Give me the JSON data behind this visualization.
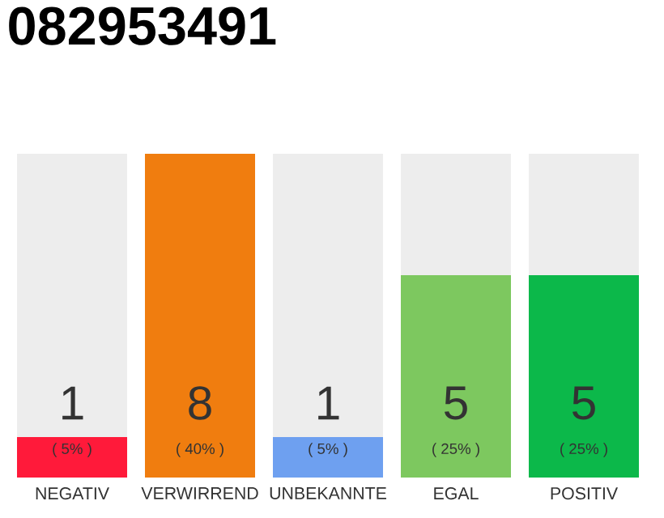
{
  "chart_data": {
    "type": "bar",
    "title": "082953491",
    "categories": [
      "NEGATIV",
      "VERWIRREND",
      "UNBEKANNTE",
      "EGAL",
      "POSITIV"
    ],
    "values": [
      1,
      8,
      1,
      5,
      5
    ],
    "colors": [
      "#ff1a3a",
      "#f07d0f",
      "#6ea0f0",
      "#7dc85f",
      "#0cb84a"
    ],
    "annotations": [
      "( 5% )",
      "( 40% )",
      "( 5% )",
      "( 25% )",
      "( 25% )"
    ],
    "data_labels": true,
    "ylim": [
      0,
      8
    ]
  }
}
